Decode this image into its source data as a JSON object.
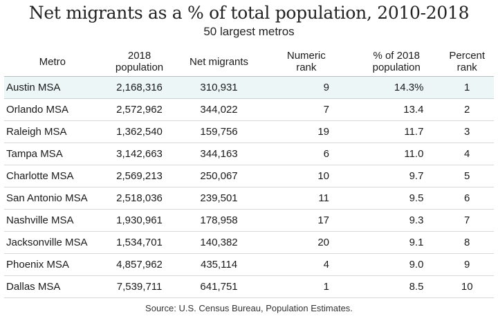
{
  "title": "Net migrants as a % of total population, 2010-2018",
  "subtitle": "50 largest metros",
  "source": "Source:  U.S. Census Bureau, Population Estimates.",
  "highlight_color": "#ecf6f6",
  "chart_data": {
    "type": "table",
    "title": "Net migrants as a % of total population, 2010-2018",
    "subtitle": "50 largest metros",
    "headers": [
      [
        "Metro"
      ],
      [
        "2018",
        "population"
      ],
      [
        "Net migrants"
      ],
      [
        "Numeric",
        "rank"
      ],
      [
        "% of 2018",
        "population"
      ],
      [
        "Percent",
        "rank"
      ]
    ],
    "rows": [
      [
        "Austin MSA",
        "2,168,316",
        "310,931",
        "9",
        "14.3%",
        "1"
      ],
      [
        "Orlando MSA",
        "2,572,962",
        "344,022",
        "7",
        "13.4",
        "2"
      ],
      [
        "Raleigh MSA",
        "1,362,540",
        "159,756",
        "19",
        "11.7",
        "3"
      ],
      [
        "Tampa MSA",
        "3,142,663",
        "344,163",
        "6",
        "11.0",
        "4"
      ],
      [
        "Charlotte MSA",
        "2,569,213",
        "250,067",
        "10",
        "9.7",
        "5"
      ],
      [
        "San Antonio MSA",
        "2,518,036",
        "239,501",
        "11",
        "9.5",
        "6"
      ],
      [
        "Nashville MSA",
        "1,930,961",
        "178,958",
        "17",
        "9.3",
        "7"
      ],
      [
        "Jacksonville MSA",
        "1,534,701",
        "140,382",
        "20",
        "9.1",
        "8"
      ],
      [
        "Phoenix MSA",
        "4,857,962",
        "435,114",
        "4",
        "9.0",
        "9"
      ],
      [
        "Dallas MSA",
        "7,539,711",
        "641,751",
        "1",
        "8.5",
        "10"
      ]
    ],
    "highlighted_row": 0
  }
}
